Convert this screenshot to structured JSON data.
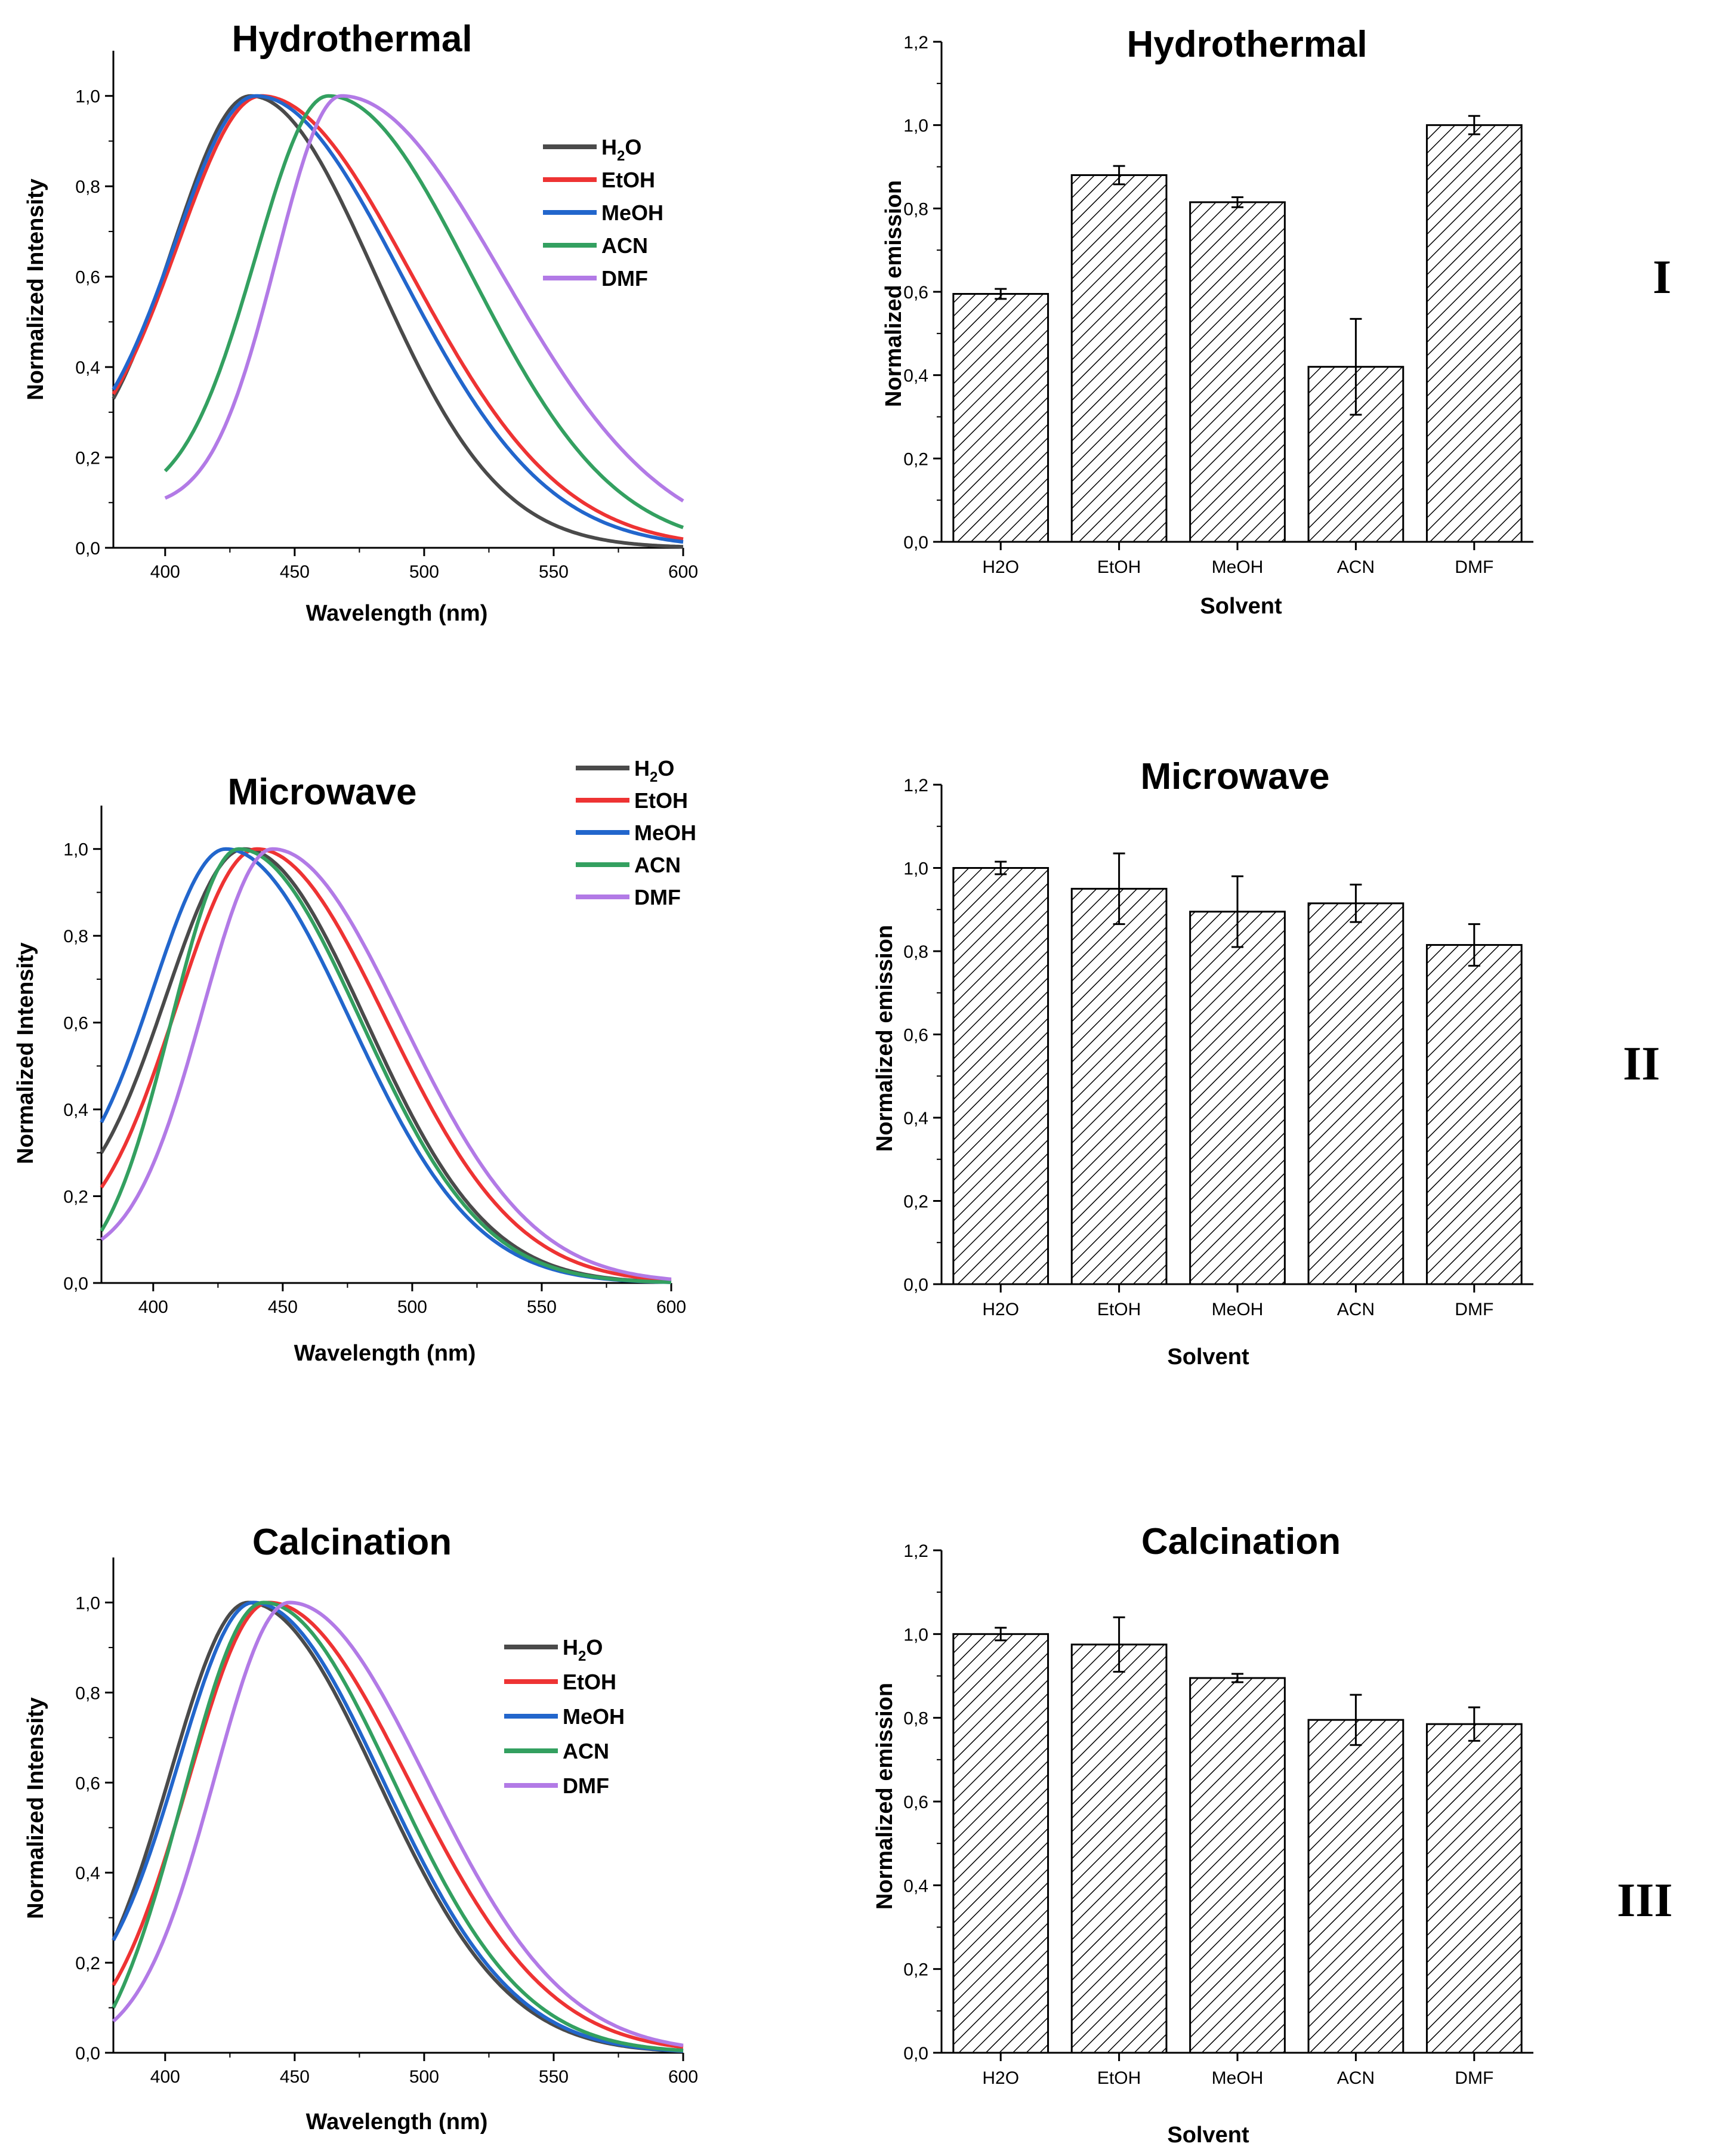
{
  "colors": {
    "H2O": "#4a4a4a",
    "EtOH": "#ee3333",
    "MeOH": "#2266cc",
    "ACN": "#33a060",
    "DMF": "#b27ae6",
    "axis": "#000000",
    "bar_fill": "#ffffff",
    "hatch": "#000000"
  },
  "row_labels": [
    "I",
    "II",
    "III"
  ],
  "chart_data": [
    {
      "id": "spec-hydro",
      "type": "line",
      "title": "Hydrothermal",
      "xlabel": "Wavelength (nm)",
      "ylabel": "Normalized Intensity",
      "xlim": [
        380,
        600
      ],
      "ylim": [
        0,
        1.1
      ],
      "xticks": [
        400,
        450,
        500,
        550,
        600
      ],
      "yticks": [
        0.0,
        0.2,
        0.4,
        0.6,
        0.8,
        1.0
      ],
      "ytick_labels": [
        "0,0",
        "0,2",
        "0,4",
        "0,6",
        "0,8",
        "1,0"
      ],
      "legend": "top-right",
      "series": [
        {
          "name": "H₂O",
          "key": "H2O",
          "label_main": "H",
          "label_sub": "2",
          "label_tail": "O",
          "start": 380,
          "peak": 433,
          "left": 30,
          "right": 48,
          "base": 0.33
        },
        {
          "name": "EtOH",
          "key": "EtOH",
          "label_main": "EtOH",
          "start": 380,
          "peak": 437,
          "left": 32,
          "right": 58,
          "base": 0.34
        },
        {
          "name": "MeOH",
          "key": "MeOH",
          "label_main": "MeOH",
          "start": 380,
          "peak": 435,
          "left": 31,
          "right": 56,
          "base": 0.35
        },
        {
          "name": "ACN",
          "key": "ACN",
          "label_main": "ACN",
          "start": 400,
          "peak": 463,
          "left": 28,
          "right": 55,
          "base": 0.17
        },
        {
          "name": "DMF",
          "key": "DMF",
          "label_main": "DMF",
          "start": 400,
          "peak": 468,
          "left": 25,
          "right": 62,
          "base": 0.11
        }
      ]
    },
    {
      "id": "bar-hydro",
      "type": "bar",
      "title": "Hydrothermal",
      "xlabel": "Solvent",
      "ylabel": "Normalized emission",
      "categories": [
        "H2O",
        "EtOH",
        "MeOH",
        "ACN",
        "DMF"
      ],
      "values": [
        0.595,
        0.88,
        0.815,
        0.42,
        1.0
      ],
      "errors": [
        0.012,
        0.022,
        0.012,
        0.115,
        0.022
      ],
      "ylim": [
        0,
        1.2
      ],
      "yticks": [
        0.0,
        0.2,
        0.4,
        0.6,
        0.8,
        1.0,
        1.2
      ],
      "ytick_labels": [
        "0,0",
        "0,2",
        "0,4",
        "0,6",
        "0,8",
        "1,0",
        "1,2"
      ]
    },
    {
      "id": "spec-micro",
      "type": "line",
      "title": "Microwave",
      "xlabel": "Wavelength (nm)",
      "ylabel": "Normalized Intensity",
      "xlim": [
        380,
        600
      ],
      "ylim": [
        0,
        1.1
      ],
      "xticks": [
        400,
        450,
        500,
        550,
        600
      ],
      "yticks": [
        0.0,
        0.2,
        0.4,
        0.6,
        0.8,
        1.0
      ],
      "ytick_labels": [
        "0,0",
        "0,2",
        "0,4",
        "0,6",
        "0,8",
        "1,0"
      ],
      "legend": "top-right",
      "series": [
        {
          "name": "H₂O",
          "key": "H2O",
          "label_main": "H",
          "label_sub": "2",
          "label_tail": "O",
          "start": 380,
          "peak": 435,
          "left": 30,
          "right": 47,
          "base": 0.3
        },
        {
          "name": "EtOH",
          "key": "EtOH",
          "label_main": "EtOH",
          "start": 380,
          "peak": 440,
          "left": 31,
          "right": 50,
          "base": 0.22
        },
        {
          "name": "MeOH",
          "key": "MeOH",
          "label_main": "MeOH",
          "start": 380,
          "peak": 428,
          "left": 28,
          "right": 48,
          "base": 0.37
        },
        {
          "name": "ACN",
          "key": "ACN",
          "label_main": "ACN",
          "start": 380,
          "peak": 433,
          "left": 26,
          "right": 47,
          "base": 0.12
        },
        {
          "name": "DMF",
          "key": "DMF",
          "label_main": "DMF",
          "start": 380,
          "peak": 446,
          "left": 27,
          "right": 50,
          "base": 0.1
        }
      ]
    },
    {
      "id": "bar-micro",
      "type": "bar",
      "title": "Microwave",
      "xlabel": "Solvent",
      "ylabel": "Normalized emission",
      "categories": [
        "H2O",
        "EtOH",
        "MeOH",
        "ACN",
        "DMF"
      ],
      "values": [
        1.0,
        0.95,
        0.895,
        0.915,
        0.815
      ],
      "errors": [
        0.015,
        0.085,
        0.085,
        0.045,
        0.05
      ],
      "ylim": [
        0,
        1.2
      ],
      "yticks": [
        0.0,
        0.2,
        0.4,
        0.6,
        0.8,
        1.0,
        1.2
      ],
      "ytick_labels": [
        "0,0",
        "0,2",
        "0,4",
        "0,6",
        "0,8",
        "1,0",
        "1,2"
      ]
    },
    {
      "id": "spec-calc",
      "type": "line",
      "title": "Calcination",
      "xlabel": "Wavelength (nm)",
      "ylabel": "Normalized Intensity",
      "xlim": [
        380,
        600
      ],
      "ylim": [
        0,
        1.1
      ],
      "xticks": [
        400,
        450,
        500,
        550,
        600
      ],
      "yticks": [
        0.0,
        0.2,
        0.4,
        0.6,
        0.8,
        1.0
      ],
      "ytick_labels": [
        "0,0",
        "0,2",
        "0,4",
        "0,6",
        "0,8",
        "1,0"
      ],
      "legend": "top-right",
      "series": [
        {
          "name": "H₂O",
          "key": "H2O",
          "label_main": "H",
          "label_sub": "2",
          "label_tail": "O",
          "start": 380,
          "peak": 432,
          "left": 30,
          "right": 50,
          "base": 0.25
        },
        {
          "name": "EtOH",
          "key": "EtOH",
          "label_main": "EtOH",
          "start": 380,
          "peak": 440,
          "left": 31,
          "right": 54,
          "base": 0.15
        },
        {
          "name": "MeOH",
          "key": "MeOH",
          "label_main": "MeOH",
          "start": 380,
          "peak": 434,
          "left": 29,
          "right": 50,
          "base": 0.25
        },
        {
          "name": "ACN",
          "key": "ACN",
          "label_main": "ACN",
          "start": 380,
          "peak": 438,
          "left": 31,
          "right": 50,
          "base": 0.1
        },
        {
          "name": "DMF",
          "key": "DMF",
          "label_main": "DMF",
          "start": 380,
          "peak": 448,
          "left": 29,
          "right": 53,
          "base": 0.07
        }
      ]
    },
    {
      "id": "bar-calc",
      "type": "bar",
      "title": "Calcination",
      "xlabel": "Solvent",
      "ylabel": "Normalized emission",
      "categories": [
        "H2O",
        "EtOH",
        "MeOH",
        "ACN",
        "DMF"
      ],
      "values": [
        1.0,
        0.975,
        0.895,
        0.795,
        0.785
      ],
      "errors": [
        0.015,
        0.065,
        0.01,
        0.06,
        0.04
      ],
      "ylim": [
        0,
        1.2
      ],
      "yticks": [
        0.0,
        0.2,
        0.4,
        0.6,
        0.8,
        1.0,
        1.2
      ],
      "ytick_labels": [
        "0,0",
        "0,2",
        "0,4",
        "0,6",
        "0,8",
        "1,0",
        "1,2"
      ]
    }
  ]
}
